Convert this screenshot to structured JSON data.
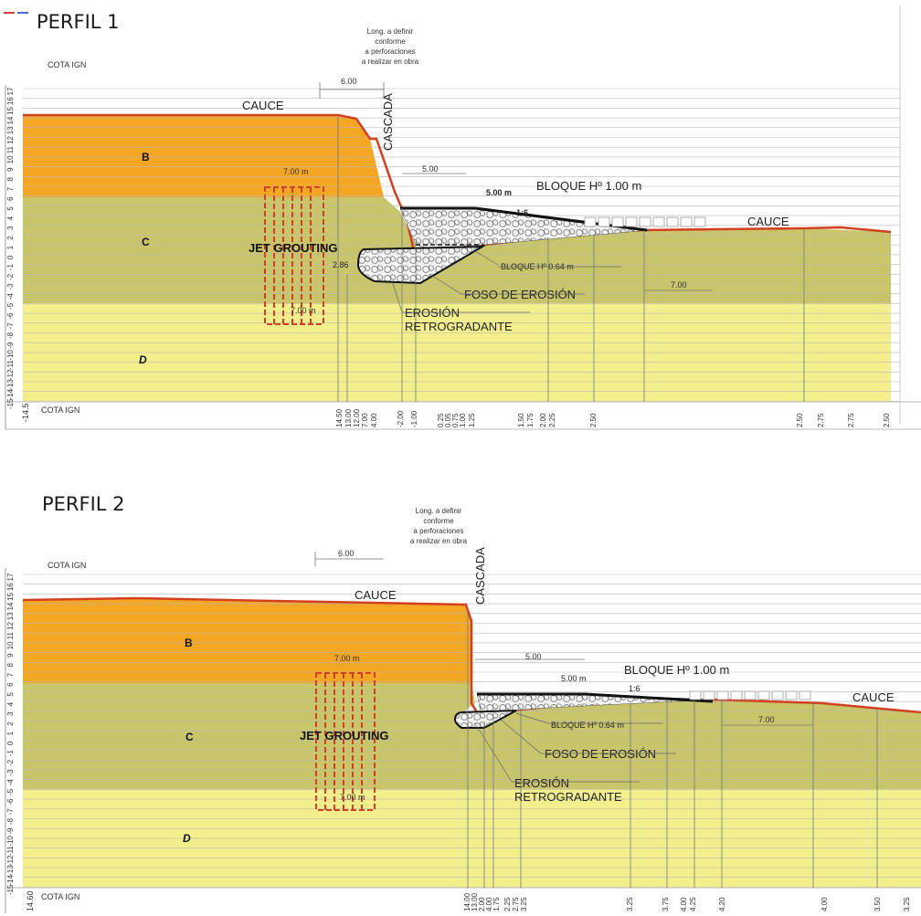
{
  "profiles": [
    {
      "title": "PERFIL 1",
      "cota_label": "COTA IGN",
      "bottom_cota_label": "COTA IGN",
      "left_bottom_level": "-14.5",
      "scale_levels": [
        "17",
        "16",
        "15",
        "14",
        "13",
        "12",
        "11",
        "10",
        "9",
        "8",
        "7",
        "6",
        "5",
        "4",
        "3",
        "2",
        "1",
        "0",
        "-1",
        "-2",
        "-3",
        "-4",
        "-5",
        "-6",
        "-7",
        "-8",
        "-9",
        "-10",
        "-11",
        "-12",
        "-13",
        "-14",
        "-15"
      ],
      "long_note": [
        "Long. a definir",
        "conforme",
        "a perforaciones",
        "a realizar en obra"
      ],
      "dim_top": "6.00",
      "cascada": "CASCADA",
      "cauce_left": "CAUCE",
      "cauce_right": "CAUCE",
      "layers": [
        "B",
        "C",
        "D"
      ],
      "jet_grouting": "JET GROUTING",
      "jet_top_dim": "7.00 m",
      "jet_bottom_dim": "7.00 m",
      "dim_5_upper": "5.00",
      "dim_5m": "5.00 m",
      "bloque_100": "BLOQUE Hº 1.00 m",
      "bloque_064": "BLOQUE Hº 0.64 m",
      "slope": "1:6",
      "dim_286": "2.86",
      "dim_7_right": "7.00",
      "foso": "FOSO DE EROSIÓN",
      "erosion": [
        "EROSIÓN",
        "RETROGRADANTE"
      ],
      "bottom_values": [
        "14.50",
        "13.00",
        "12.00",
        "7.00",
        "4.00",
        "-2.00",
        "-1.00",
        "0.25",
        "0.05",
        "0.75",
        "1.00",
        "1.25",
        "1.50",
        "1.75",
        "2.00",
        "2.25",
        "2.50",
        "2.50",
        "2.75",
        "2.75",
        "2.50"
      ]
    },
    {
      "title": "PERFIL 2",
      "cota_label": "COTA IGN",
      "bottom_cota_label": "COTA IGN",
      "left_bottom_level": "14.60",
      "scale_levels": [
        "17",
        "16",
        "15",
        "14",
        "13",
        "12",
        "11",
        "10",
        "9",
        "8",
        "7",
        "6",
        "5",
        "4",
        "3",
        "2",
        "1",
        "0",
        "-1",
        "-2",
        "-3",
        "-4",
        "-5",
        "-6",
        "-7",
        "-8",
        "-9",
        "-10",
        "-11",
        "-12",
        "-13",
        "-14",
        "-15"
      ],
      "long_note": [
        "Long. a definir",
        "conforme",
        "a perforaciones",
        "a realizar en obra"
      ],
      "dim_top": "6.00",
      "cascada": "CASCADA",
      "cauce_left": "CAUCE",
      "cauce_right": "CAUCE",
      "layers": [
        "B",
        "C",
        "D"
      ],
      "jet_grouting": "JET GROUTING",
      "jet_top_dim": "7.00 m",
      "jet_bottom_dim": "7.00 m",
      "dim_5_upper": "5.00",
      "dim_5m": "5.00 m",
      "bloque_100": "BLOQUE Hº 1.00 m",
      "bloque_064": "BLOQUE Hº 0.64 m",
      "slope": "1:6",
      "dim_7_right": "7.00",
      "foso": "FOSO DE EROSIÓN",
      "erosion": [
        "EROSIÓN",
        "RETROGRADANTE"
      ],
      "bottom_values": [
        "14.00",
        "13.00",
        "2.00",
        "4.00",
        "1.75",
        "2.25",
        "2.75",
        "3.25",
        "3.25",
        "3.75",
        "4.00",
        "4.25",
        "4.20",
        "4.00",
        "3.50",
        "3.25"
      ]
    }
  ],
  "colors": {
    "layer_b": "#f5a623",
    "layer_c": "#c9c56a",
    "layer_d": "#f3ef8c",
    "ground_line": "#d2401f",
    "jet": "#d2401f",
    "block": "#111111",
    "grid": "#b9b9b9"
  }
}
